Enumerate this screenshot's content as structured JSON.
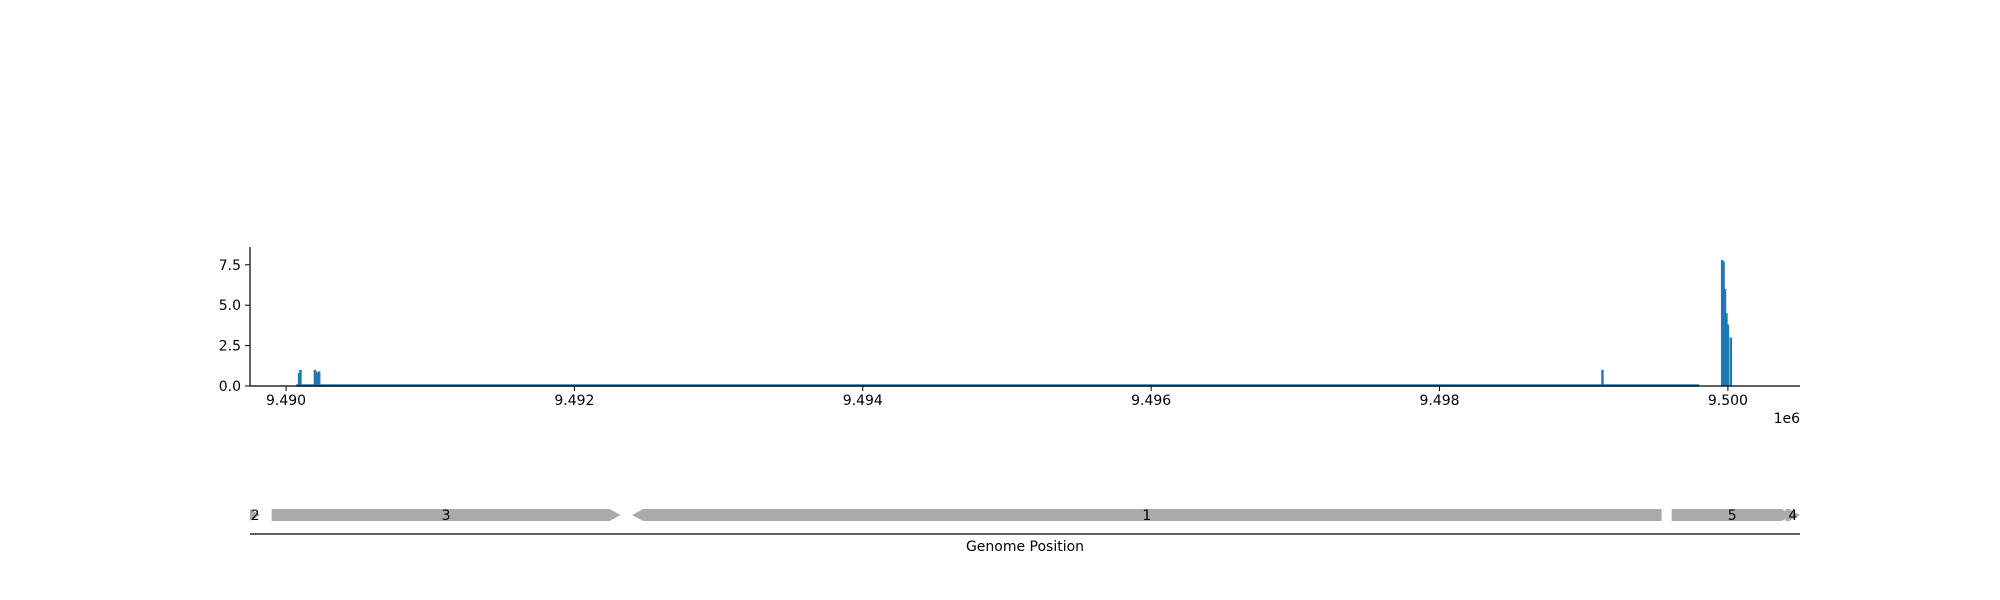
{
  "chart_data": [
    {
      "type": "bar",
      "title": "",
      "xlabel": "",
      "ylabel": "",
      "x_offset_label": "1e6",
      "xlim": [
        9.48975,
        9.5005
      ],
      "ylim": [
        0,
        8.6
      ],
      "x_ticks": [
        9.49,
        9.492,
        9.494,
        9.496,
        9.498,
        9.5
      ],
      "x_tick_labels": [
        "9.490",
        "9.492",
        "9.494",
        "9.496",
        "9.498",
        "9.500"
      ],
      "y_ticks": [
        0,
        2.5,
        5,
        7.5
      ],
      "y_tick_labels": [
        "0.0",
        "2.5",
        "5.0",
        "7.5"
      ],
      "baseline": 0.03,
      "color": "#1f77b4",
      "series": [
        {
          "x": [
            9.49009,
            9.4901,
            9.4902,
            9.49021,
            9.49022,
            9.49023,
            9.49913,
            9.49996,
            9.49997,
            9.49998,
            9.49999,
            9.5,
            9.50002
          ],
          "values": [
            0.8,
            1.0,
            1.0,
            0.9,
            0.8,
            0.9,
            1.0,
            7.8,
            7.7,
            6.0,
            4.5,
            3.8,
            3.0
          ]
        }
      ]
    },
    {
      "type": "gene-track",
      "xlabel": "Genome Position",
      "color": "#aaaaaa",
      "genes": [
        {
          "label": "2",
          "start": 9.48975,
          "end": 9.48982,
          "strand": "+"
        },
        {
          "label": "3",
          "start": 9.4899,
          "end": 9.49232,
          "strand": "+"
        },
        {
          "label": "1",
          "start": 9.4924,
          "end": 9.49954,
          "strand": "-"
        },
        {
          "label": "5",
          "start": 9.49961,
          "end": 9.50045,
          "strand": "+"
        },
        {
          "label": "4",
          "start": 9.5004,
          "end": 9.5005,
          "strand": "+"
        }
      ]
    }
  ]
}
